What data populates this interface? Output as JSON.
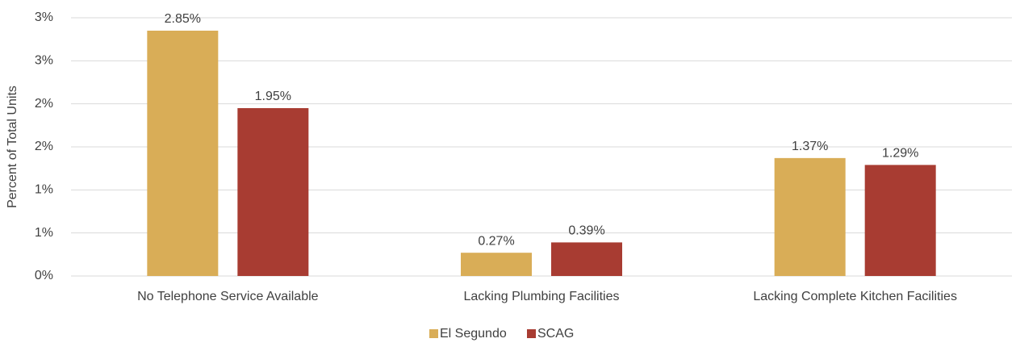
{
  "chart_data": {
    "type": "bar",
    "y_label": "Percent of Total Units",
    "categories": [
      "No Telephone Service Available",
      "Lacking Plumbing Facilities",
      "Lacking Complete Kitchen Facilities"
    ],
    "series": [
      {
        "name": "El Segundo",
        "color": "#d9ad57",
        "values": [
          2.85,
          0.27,
          1.37
        ],
        "value_labels": [
          "2.85%",
          "0.27%",
          "1.37%"
        ]
      },
      {
        "name": "SCAG",
        "color": "#a83c32",
        "values": [
          1.95,
          0.39,
          1.29
        ],
        "value_labels": [
          "1.95%",
          "0.39%",
          "1.29%"
        ]
      }
    ],
    "ylim": [
      0,
      3
    ],
    "yticks": [
      {
        "value": 0,
        "label": "0%"
      },
      {
        "value": 0.5,
        "label": "1%"
      },
      {
        "value": 1,
        "label": "1%"
      },
      {
        "value": 1.5,
        "label": "2%"
      },
      {
        "value": 2,
        "label": "2%"
      },
      {
        "value": 2.5,
        "label": "3%"
      },
      {
        "value": 3,
        "label": "3%"
      }
    ],
    "grid": true,
    "legend": "bottom"
  }
}
